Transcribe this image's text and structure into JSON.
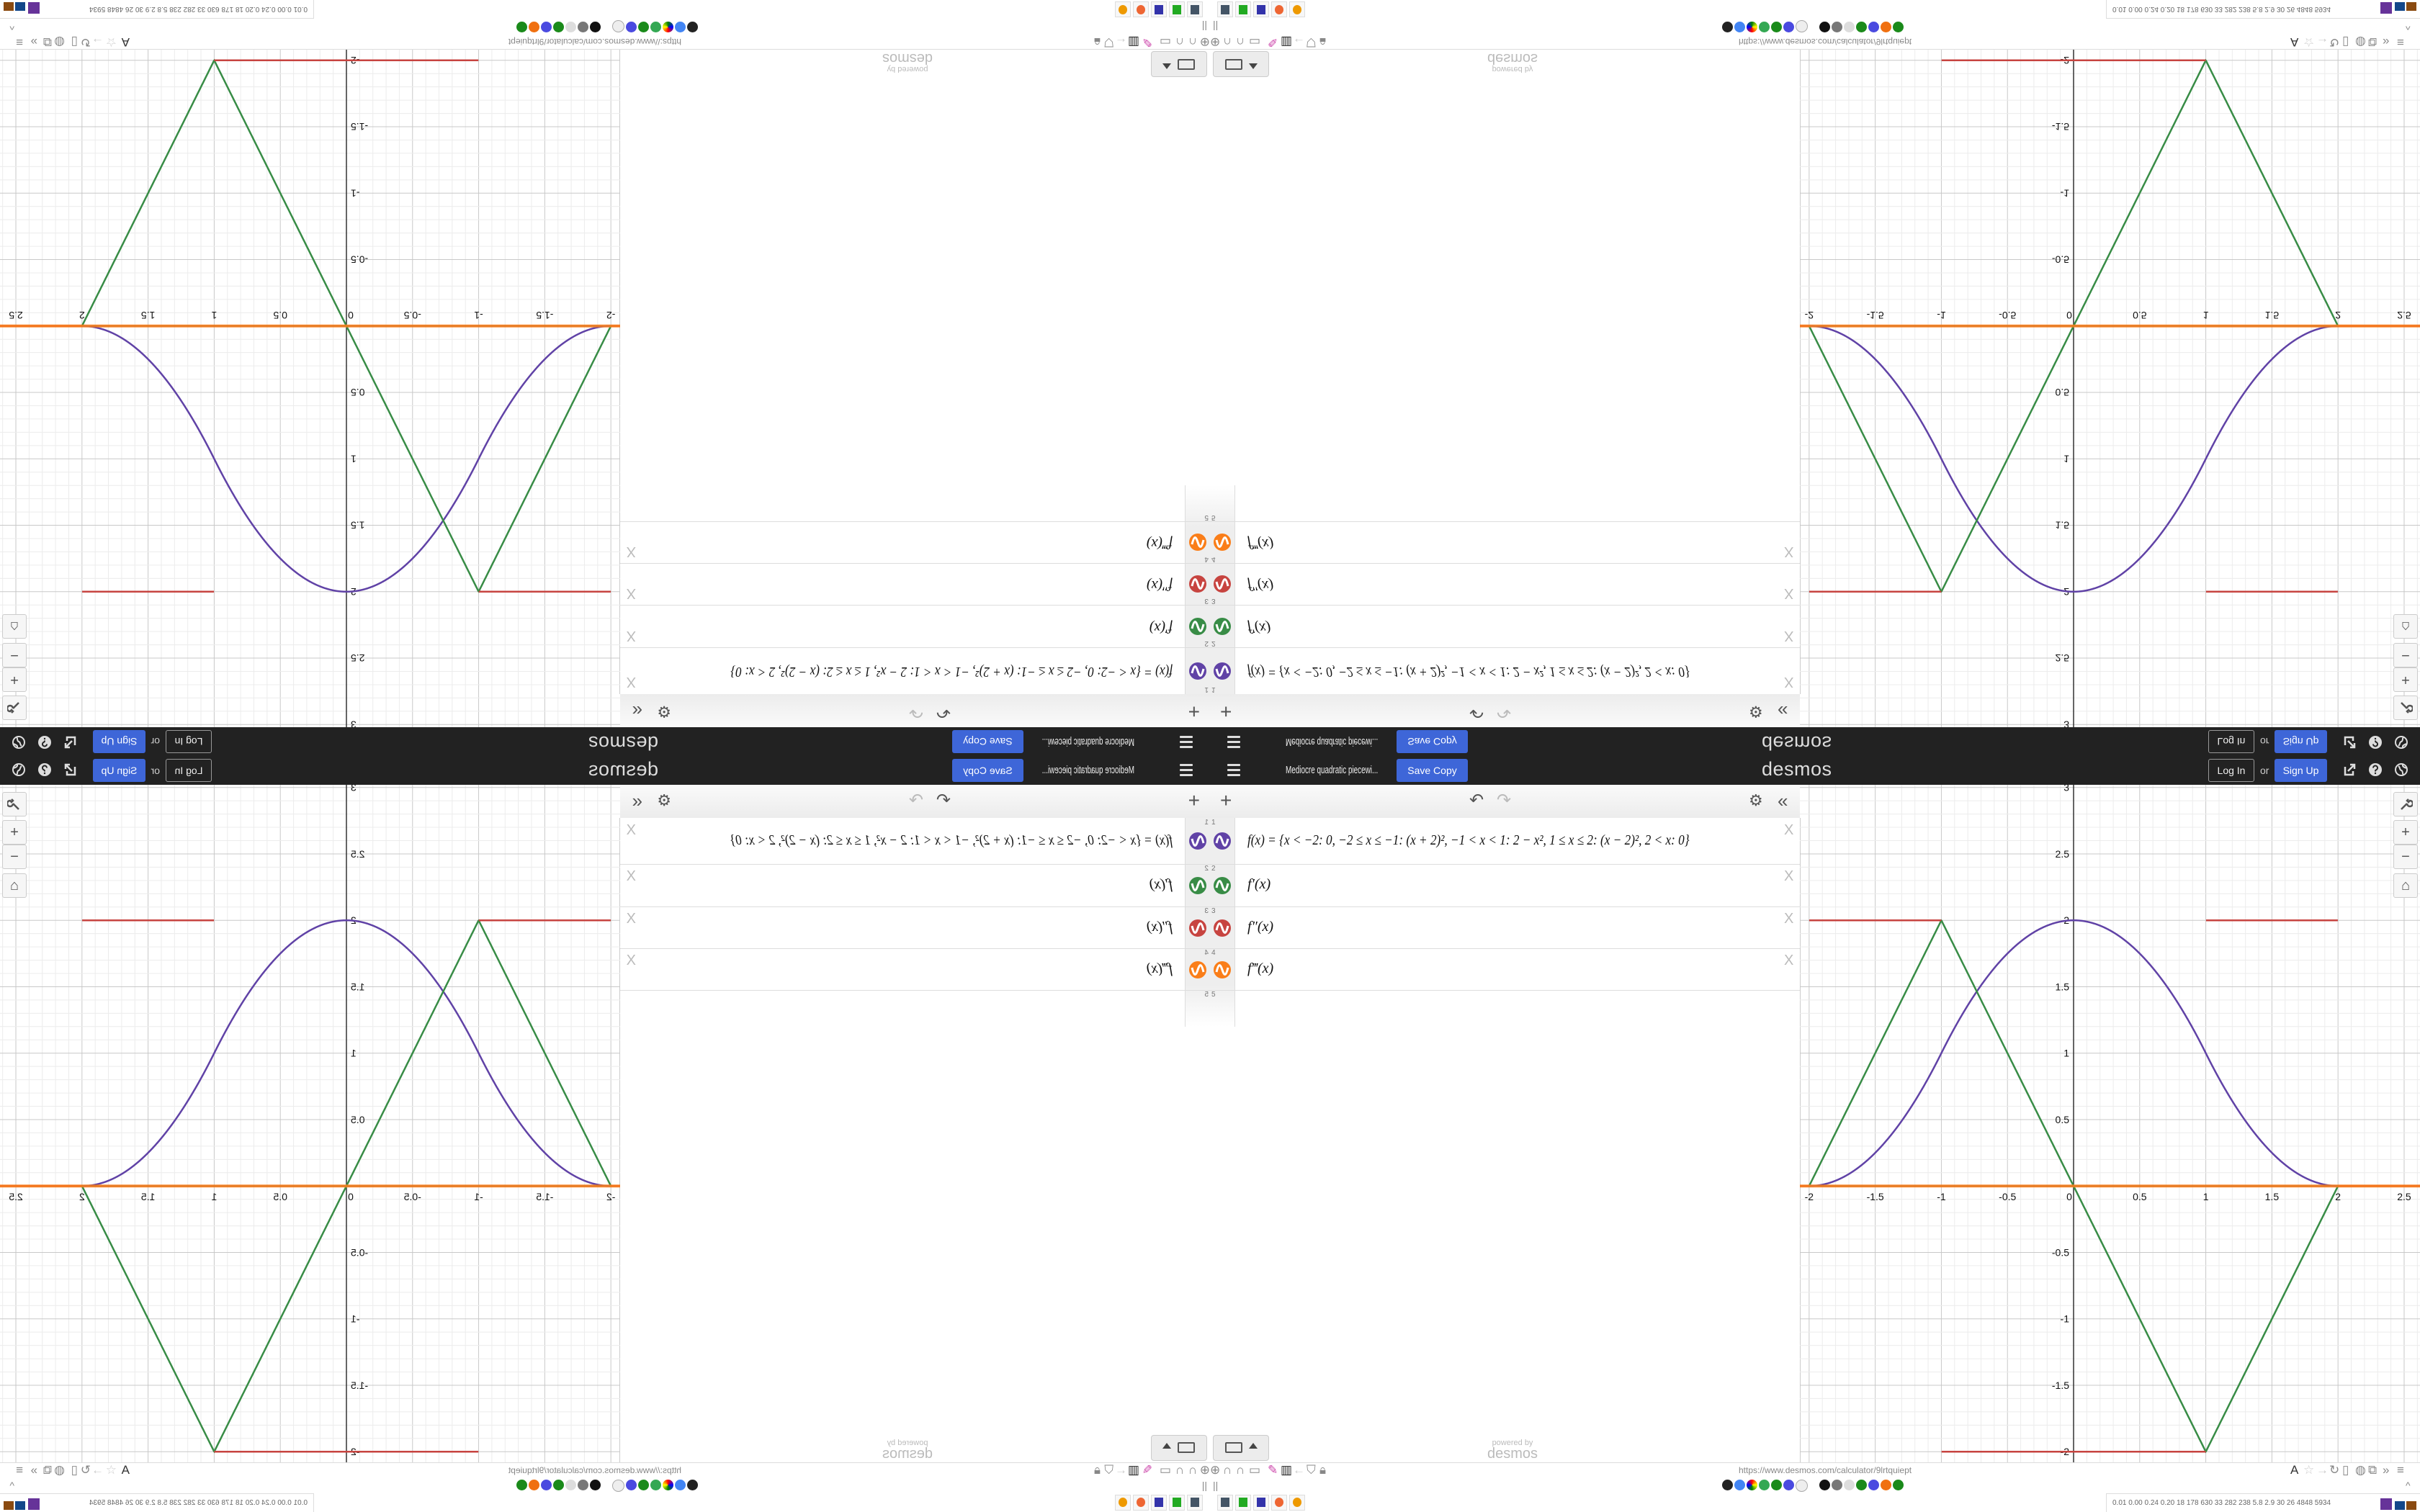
{
  "header": {
    "title": "Mediocre quadratic piecewi...",
    "save_copy": "Save Copy",
    "logo": "desmos",
    "log_in": "Log In",
    "or": "or",
    "sign_up": "Sign Up",
    "icons": [
      "hamburger-icon",
      "share-icon",
      "help-icon",
      "globe-icon"
    ]
  },
  "toolbar": {
    "add": "+",
    "undo": "↶",
    "redo": "↷",
    "settings": "⚙",
    "collapse": "«"
  },
  "expressions": [
    {
      "index": "1",
      "text": "f(x) = {x < −2: 0, −2 ≤ x ≤ −1: (x + 2)², −1 < x < 1: 2 − x², 1 ≤ x ≤ 2: (x − 2)², 2 < x: 0}",
      "color": "#6042a6"
    },
    {
      "index": "2",
      "text": "f′(x)",
      "color": "#388c46"
    },
    {
      "index": "3",
      "text": "f″(x)",
      "color": "#c74440"
    },
    {
      "index": "4",
      "text": "f‴(x)",
      "color": "#fa7e19"
    }
  ],
  "empty_row_index": "5",
  "delete_label": "X",
  "powered_by": {
    "line1": "powered by",
    "line2": "desmos"
  },
  "graph": {
    "x_range": [
      -2.07,
      2.62
    ],
    "y_range": [
      -2.08,
      3.02
    ],
    "grid": true,
    "x_tick_labels": [
      "-2",
      "-1.5",
      "-1",
      "-0.5",
      "0",
      "0.5",
      "1",
      "1.5",
      "2",
      "2.5"
    ],
    "y_tick_labels": [
      "-2",
      "-1.5",
      "-1",
      "-0.5",
      "0.5",
      "1",
      "1.5",
      "2",
      "2.5",
      "3"
    ],
    "controls": [
      "wrench-icon",
      "zoom-in-icon",
      "zoom-out-icon",
      "home-icon"
    ]
  },
  "browser": {
    "url": "https://www.desmos.com/calculator/9lrtquiept",
    "pause_label": "||",
    "stats": "0.01 0.00 0.24 0.20  18  178  630  33  282  238  5.8  2.9  30  26  4848 5934"
  }
}
